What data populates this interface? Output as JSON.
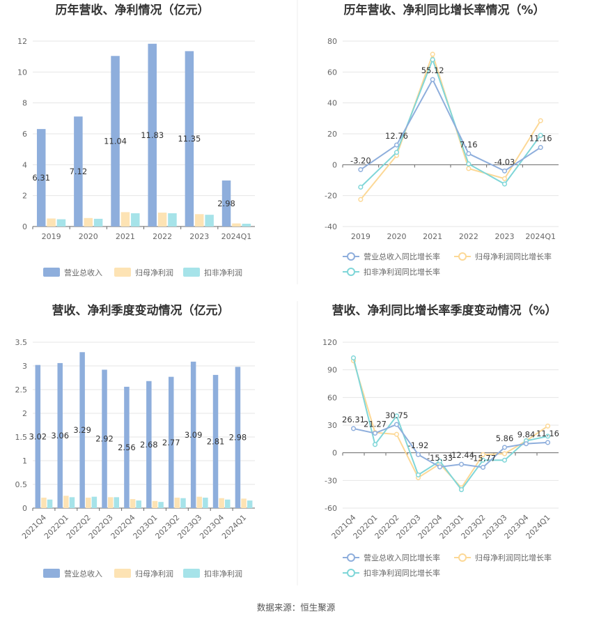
{
  "source": "数据来源：恒生聚源",
  "legend_bar": [
    "营业总收入",
    "归母净利润",
    "扣非净利润"
  ],
  "legend_line": [
    "营业总收入同比增长率",
    "归母净利润同比增长率",
    "扣非净利润同比增长率"
  ],
  "colors": {
    "revenue": "#8eaedc",
    "net_profit": "#fde3b4",
    "deducted": "#a6e3e9",
    "revenue_line": "#8eaedc",
    "net_profit_line": "#fcd896",
    "deducted_line": "#7fd6d8"
  },
  "chart_data": [
    {
      "type": "bar",
      "title": "历年营收、净利情况（亿元）",
      "categories": [
        "2019",
        "2020",
        "2021",
        "2022",
        "2023",
        "2024Q1"
      ],
      "ylim": [
        0,
        12
      ],
      "yticks": [
        0,
        2,
        4,
        6,
        8,
        10,
        12
      ],
      "series": [
        {
          "name": "营业总收入",
          "values": [
            6.31,
            7.12,
            11.04,
            11.83,
            11.35,
            2.98
          ]
        },
        {
          "name": "归母净利润",
          "values": [
            0.52,
            0.55,
            0.93,
            0.9,
            0.8,
            0.2
          ]
        },
        {
          "name": "扣非净利润",
          "values": [
            0.47,
            0.5,
            0.86,
            0.86,
            0.76,
            0.18
          ]
        }
      ],
      "data_labels": [
        "6.31",
        "7.12",
        "11.04",
        "11.83",
        "11.35",
        "2.98"
      ],
      "legend": "bottom"
    },
    {
      "type": "line",
      "title": "历年营收、净利同比增长率情况（%）",
      "categories": [
        "2019",
        "2020",
        "2021",
        "2022",
        "2023",
        "2024Q1"
      ],
      "ylim": [
        -40,
        80
      ],
      "yticks": [
        -40,
        -20,
        0,
        20,
        40,
        60,
        80
      ],
      "series": [
        {
          "name": "营业总收入同比增长率",
          "values": [
            -3.2,
            12.76,
            55.12,
            7.16,
            -4.03,
            11.16
          ]
        },
        {
          "name": "归母净利润同比增长率",
          "values": [
            -22.5,
            6,
            71.5,
            -2.5,
            -9,
            28.5
          ]
        },
        {
          "name": "扣非净利润同比增长率",
          "values": [
            -14.5,
            8,
            68,
            0.5,
            -12.5,
            19
          ]
        }
      ],
      "data_labels": [
        "-3.20",
        "12.76",
        "55.12",
        "7.16",
        "-4.03",
        "11.16"
      ],
      "legend": "bottom"
    },
    {
      "type": "bar",
      "title": "营收、净利季度变动情况（亿元）",
      "categories": [
        "2021Q4",
        "2022Q1",
        "2022Q2",
        "2022Q3",
        "2022Q4",
        "2023Q1",
        "2023Q2",
        "2023Q3",
        "2023Q4",
        "2024Q1"
      ],
      "ylim": [
        0,
        3.5
      ],
      "yticks": [
        0,
        0.5,
        1,
        1.5,
        2,
        2.5,
        3,
        3.5
      ],
      "series": [
        {
          "name": "营业总收入",
          "values": [
            3.02,
            3.06,
            3.29,
            2.92,
            2.56,
            2.68,
            2.77,
            3.09,
            2.81,
            2.98
          ]
        },
        {
          "name": "归母净利润",
          "values": [
            0.22,
            0.26,
            0.22,
            0.23,
            0.19,
            0.15,
            0.22,
            0.24,
            0.21,
            0.2
          ]
        },
        {
          "name": "扣非净利润",
          "values": [
            0.18,
            0.23,
            0.24,
            0.23,
            0.16,
            0.13,
            0.21,
            0.22,
            0.18,
            0.16
          ]
        }
      ],
      "data_labels": [
        "3.02",
        "3.06",
        "3.29",
        "2.92",
        "2.56",
        "2.68",
        "2.77",
        "3.09",
        "2.81",
        "2.98"
      ],
      "legend": "bottom"
    },
    {
      "type": "line",
      "title": "营收、净利同比增长率季度变动情况（%）",
      "categories": [
        "2021Q4",
        "2022Q1",
        "2022Q2",
        "2022Q3",
        "2022Q4",
        "2023Q1",
        "2023Q2",
        "2023Q3",
        "2023Q4",
        "2024Q1"
      ],
      "ylim": [
        -60,
        120
      ],
      "yticks": [
        -60,
        -30,
        0,
        30,
        60,
        90,
        120
      ],
      "series": [
        {
          "name": "营业总收入同比增长率",
          "values": [
            26.31,
            21.27,
            30.75,
            -1.92,
            -15.33,
            -12.44,
            -15.77,
            5.86,
            9.84,
            11.16
          ]
        },
        {
          "name": "归母净利润同比增长率",
          "values": [
            100,
            22,
            20,
            -27,
            -12,
            -38,
            -2,
            -1,
            13,
            29
          ]
        },
        {
          "name": "扣非净利润同比增长率",
          "values": [
            103,
            9,
            40,
            -24,
            -9,
            -40,
            -8,
            -8,
            13,
            18
          ]
        }
      ],
      "data_labels": [
        "26.31",
        "21.27",
        "30.75",
        "-1.92",
        "-15.33",
        "-12.44",
        "-15.77",
        "5.86",
        "9.84",
        "11.16"
      ],
      "legend": "bottom"
    }
  ]
}
